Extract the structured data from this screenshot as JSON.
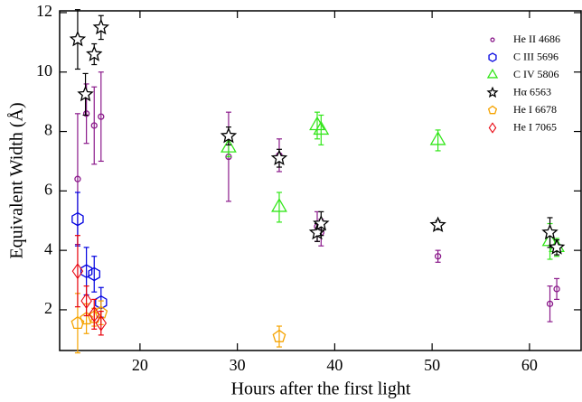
{
  "chart_data": {
    "type": "scatter",
    "xlabel": "Hours after the first light",
    "ylabel": "Equivalent Width (Å)",
    "xlim": [
      11.75,
      65.3
    ],
    "ylim": [
      0.63,
      12.06
    ],
    "xticks": [
      20,
      30,
      40,
      50,
      60
    ],
    "yticks": [
      2,
      4,
      6,
      8,
      10,
      12
    ],
    "legend": "upper right",
    "series": [
      {
        "name": "He II 4686",
        "color": "#8b1a8b",
        "marker": "circle",
        "x": [
          13.6,
          14.5,
          15.3,
          16.0,
          29.1,
          34.3,
          38.2,
          38.6,
          50.6,
          62.1,
          62.8
        ],
        "values": [
          6.4,
          8.6,
          8.2,
          8.5,
          7.15,
          7.2,
          4.8,
          4.6,
          3.8,
          2.2,
          2.7
        ],
        "errors": [
          2.2,
          1.0,
          1.3,
          1.5,
          1.5,
          0.55,
          0.5,
          0.45,
          0.2,
          0.6,
          0.35
        ]
      },
      {
        "name": "C III 5696",
        "color": "#0000e0",
        "marker": "hexagon",
        "x": [
          13.6,
          14.5,
          15.3,
          16.0
        ],
        "values": [
          5.05,
          3.3,
          3.2,
          2.25
        ],
        "errors": [
          0.9,
          0.8,
          0.6,
          0.5
        ]
      },
      {
        "name": "C IV 5806",
        "color": "#33e61a",
        "marker": "triangle",
        "x": [
          29.1,
          34.3,
          38.2,
          38.6,
          50.6,
          62.1,
          62.8
        ],
        "values": [
          7.45,
          5.45,
          8.2,
          8.05,
          7.7,
          4.3,
          4.1
        ],
        "errors": [
          0.3,
          0.5,
          0.45,
          0.5,
          0.35,
          0.6,
          0.3
        ]
      },
      {
        "name": "Hα 6563",
        "color": "#000000",
        "marker": "star",
        "x": [
          13.6,
          14.4,
          15.3,
          16.0,
          29.1,
          34.3,
          38.2,
          38.6,
          50.6,
          62.1,
          62.8
        ],
        "values": [
          11.1,
          9.25,
          10.6,
          11.5,
          7.85,
          7.1,
          4.6,
          4.9,
          4.85,
          4.6,
          4.1
        ],
        "errors": [
          1.0,
          0.7,
          0.35,
          0.4,
          0.3,
          0.3,
          0.3,
          0.4,
          0.15,
          0.5,
          0.25
        ]
      },
      {
        "name": "He I 6678",
        "color": "#f5a300",
        "marker": "pentagon",
        "x": [
          13.6,
          14.5,
          15.3,
          16.0,
          34.3
        ],
        "values": [
          1.55,
          1.7,
          1.75,
          1.9,
          1.1
        ],
        "errors": [
          1.0,
          0.5,
          0.3,
          0.4,
          0.35
        ]
      },
      {
        "name": "He I 7065",
        "color": "#e8000b",
        "marker": "diamond",
        "x": [
          13.6,
          14.5,
          15.3,
          16.0
        ],
        "values": [
          3.3,
          2.3,
          1.85,
          1.55
        ],
        "errors": [
          1.2,
          0.5,
          0.5,
          0.4
        ]
      }
    ]
  }
}
